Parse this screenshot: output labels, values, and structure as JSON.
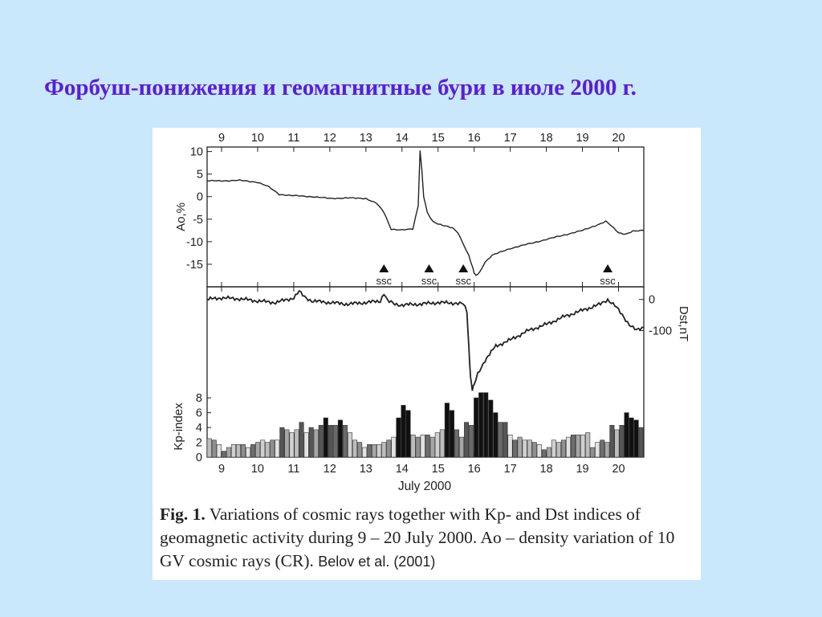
{
  "slide": {
    "title": "Форбуш-понижения и геомагнитные бури в июле 2000 г."
  },
  "figure": {
    "caption_label": "Fig. 1.",
    "caption_text": " Variations of cosmic rays together with Kp- and Dst indices of geomagnetic activity during 9 – 20 July 2000. Ao – density variation of 10 GV cosmic rays (CR).",
    "credit": "Belov et al. (2001)"
  },
  "chart_data": {
    "type": "line",
    "xlabel": "July 2000",
    "x_ticks": [
      "9",
      "10",
      "11",
      "12",
      "13",
      "14",
      "15",
      "16",
      "17",
      "18",
      "19",
      "20"
    ],
    "x_range": [
      8.6,
      20.7
    ],
    "ao": {
      "ylabel": "Ao,%",
      "ylim": [
        -20,
        11
      ],
      "yticks": [
        "10",
        "5",
        "0",
        "-5",
        "-10",
        "-15"
      ],
      "x": [
        8.6,
        9.0,
        9.5,
        10.0,
        10.3,
        10.6,
        11.0,
        11.5,
        12.0,
        12.5,
        13.0,
        13.3,
        13.5,
        13.7,
        14.0,
        14.3,
        14.45,
        14.5,
        14.55,
        14.6,
        14.7,
        14.85,
        15.0,
        15.2,
        15.4,
        15.55,
        15.7,
        15.85,
        15.95,
        16.0,
        16.05,
        16.15,
        16.3,
        16.5,
        17.0,
        17.5,
        18.0,
        18.5,
        19.0,
        19.5,
        19.65,
        19.8,
        20.0,
        20.2,
        20.4,
        20.7
      ],
      "values": [
        3.5,
        3.5,
        3.6,
        3.2,
        2.2,
        0.5,
        0.2,
        0,
        -0.4,
        -0.3,
        -0.4,
        -1.5,
        -3.5,
        -7.2,
        -7.4,
        -7.2,
        -2.0,
        10.2,
        6.0,
        0.0,
        -3.5,
        -5.5,
        -6.0,
        -6.5,
        -7.0,
        -8.0,
        -10.5,
        -13.0,
        -15.5,
        -17.0,
        -17.5,
        -16.8,
        -14.5,
        -13.0,
        -11.5,
        -10.5,
        -9.5,
        -8.5,
        -7.5,
        -6.0,
        -5.5,
        -6.5,
        -8.0,
        -8.3,
        -7.7,
        -7.5
      ]
    },
    "ssc_markers": {
      "label": "ssc",
      "x": [
        13.5,
        14.75,
        15.7,
        19.7
      ]
    },
    "dst": {
      "ylabel": "Dst,nT",
      "ylim": [
        -300,
        25
      ],
      "yticks": [
        "0",
        "-100"
      ],
      "x": [
        8.6,
        9.0,
        9.5,
        10.0,
        10.5,
        11.0,
        11.15,
        11.3,
        11.5,
        12.0,
        12.5,
        13.0,
        13.4,
        13.5,
        13.6,
        13.8,
        14.0,
        14.5,
        15.0,
        15.5,
        15.7,
        15.8,
        15.85,
        15.9,
        15.95,
        16.0,
        16.1,
        16.3,
        16.6,
        17.0,
        17.5,
        18.0,
        18.5,
        19.0,
        19.5,
        19.7,
        19.9,
        20.1,
        20.3,
        20.5,
        20.7
      ],
      "values": [
        0,
        5,
        2,
        -5,
        -10,
        5,
        25,
        8,
        -5,
        -10,
        -15,
        -10,
        -5,
        20,
        -5,
        -15,
        -18,
        -15,
        -10,
        -12,
        -15,
        -40,
        -150,
        -250,
        -290,
        -275,
        -240,
        -195,
        -150,
        -130,
        -100,
        -80,
        -55,
        -35,
        -15,
        0,
        -20,
        -50,
        -80,
        -100,
        -90
      ]
    },
    "kp": {
      "ylabel": "Kp-index",
      "ylim": [
        0,
        9
      ],
      "yticks": [
        "8",
        "6",
        "4",
        "2",
        "0"
      ],
      "values": [
        2.5,
        2.3,
        1.7,
        0.8,
        1.3,
        1.7,
        1.7,
        1.7,
        1.3,
        1.7,
        2.0,
        2.3,
        2.0,
        2.3,
        2.3,
        4.0,
        3.7,
        3.3,
        3.7,
        4.7,
        3.3,
        4.0,
        3.7,
        4.3,
        5.3,
        4.3,
        4.3,
        5.0,
        4.3,
        3.3,
        2.3,
        2.0,
        1.3,
        1.7,
        1.7,
        1.7,
        2.0,
        2.3,
        2.7,
        5.3,
        7.0,
        6.3,
        3.0,
        2.7,
        3.0,
        3.0,
        2.7,
        3.3,
        3.7,
        7.3,
        6.3,
        3.7,
        2.7,
        4.7,
        4.3,
        8.0,
        8.7,
        8.7,
        7.7,
        6.0,
        4.7,
        4.7,
        3.0,
        2.3,
        2.7,
        2.3,
        2.3,
        2.0,
        1.7,
        1.0,
        1.3,
        2.3,
        2.0,
        2.3,
        2.7,
        3.0,
        3.0,
        3.0,
        3.3,
        1.3,
        2.0,
        2.3,
        2.0,
        4.3,
        3.7,
        4.3,
        6.0,
        5.3,
        5.0,
        4.0
      ]
    }
  }
}
